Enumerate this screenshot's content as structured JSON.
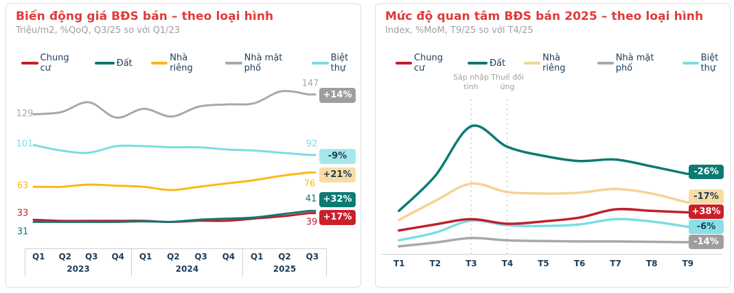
{
  "cards": [
    {
      "title": "Biến động giá BĐS bán – theo loại hình",
      "subtitle": "Triệu/m2, %QoQ, Q3/25 so với Q1/23",
      "legend": [
        {
          "label": "Chung cư",
          "color": "#c0202a"
        },
        {
          "label": "Đất",
          "color": "#0c7a72"
        },
        {
          "label": "Nhà riêng",
          "color": "#fcb813"
        },
        {
          "label": "Nhà mặt phố",
          "color": "#a8a8a8"
        },
        {
          "label": "Biệt thự",
          "color": "#7adde3"
        }
      ],
      "chart_data": {
        "type": "line",
        "x_labels": [
          "Q1",
          "Q2",
          "Q3",
          "Q4",
          "Q1",
          "Q2",
          "Q3",
          "Q4",
          "Q1",
          "Q2",
          "Q3"
        ],
        "year_groups": [
          {
            "label": "2023",
            "quarters": [
              "Q1",
              "Q2",
              "Q3",
              "Q4"
            ]
          },
          {
            "label": "2024",
            "quarters": [
              "Q1",
              "Q2",
              "Q3",
              "Q4"
            ]
          },
          {
            "label": "2025",
            "quarters": [
              "Q1",
              "Q2",
              "Q3"
            ]
          }
        ],
        "ylabel": "Triệu/m2",
        "series": [
          {
            "name": "Chung cư",
            "color": "#c0202a",
            "values": [
              33,
              32,
              32,
              32,
              32,
              31,
              32,
              32,
              34,
              36,
              39
            ],
            "start_label": "33",
            "end_label": "39",
            "change": "+17%",
            "badge": {
              "bg": "#c9202b",
              "fg": "#ffffff"
            }
          },
          {
            "name": "Đất",
            "color": "#0c7a72",
            "values": [
              31,
              31,
              31,
              31,
              31.5,
              31,
              33,
              34,
              35,
              38,
              41
            ],
            "start_label": "31",
            "end_label": "41",
            "change": "+32%",
            "badge": {
              "bg": "#0b7b72",
              "fg": "#ffffff"
            }
          },
          {
            "name": "Nhà riêng",
            "color": "#fcb813",
            "values": [
              63,
              63,
              65,
              64,
              63,
              60,
              63,
              66,
              69,
              73,
              76
            ],
            "start_label": "63",
            "end_label": "76",
            "change": "+21%",
            "badge": {
              "bg": "#f8dca4",
              "fg": "#1d3c5a"
            }
          },
          {
            "name": "Nhà mặt phố",
            "color": "#a8a8a8",
            "values": [
              129,
              131,
              140,
              126,
              134,
              127,
              136,
              138,
              139,
              150,
              147
            ],
            "start_label": "129",
            "end_label": "147",
            "change": "+14%",
            "badge": {
              "bg": "#9e9e9e",
              "fg": "#ffffff"
            }
          },
          {
            "name": "Biệt thự",
            "color": "#7adde3",
            "values": [
              101,
              96,
              94,
              100,
              100,
              99,
              99,
              97,
              96,
              94,
              92
            ],
            "start_label": "101",
            "end_label": "92",
            "change": "-9%",
            "badge": {
              "bg": "#a5e7ea",
              "fg": "#1d3c5a"
            }
          }
        ]
      }
    },
    {
      "title": "Mức độ quan tâm BĐS bán 2025 – theo loại hình",
      "subtitle": "Index, %MoM, T9/25 so với T4/25",
      "legend": [
        {
          "label": "Chung cư",
          "color": "#c0202a"
        },
        {
          "label": "Đất",
          "color": "#0c7a72"
        },
        {
          "label": "Nhà riêng",
          "color": "#f6d293"
        },
        {
          "label": "Nhà mặt phố",
          "color": "#a8a8a8"
        },
        {
          "label": "Biệt thự",
          "color": "#7adde3"
        }
      ],
      "annotations": [
        {
          "label": "Sáp nhập tỉnh",
          "x_label": "T3"
        },
        {
          "label": "Thuế đối ứng",
          "x_label": "T4"
        }
      ],
      "chart_data": {
        "type": "line",
        "x_labels": [
          "T1",
          "T2",
          "T3",
          "T4",
          "T5",
          "T6",
          "T7",
          "T8",
          "T9"
        ],
        "ylabel": "Index",
        "series": [
          {
            "name": "Chung cư",
            "color": "#c0202a",
            "values": [
              31,
              39,
              46,
              40,
              43,
              48,
              59,
              57,
              55
            ],
            "change": "+38%",
            "badge": {
              "bg": "#c9202b",
              "fg": "#ffffff"
            }
          },
          {
            "name": "Đất",
            "color": "#0c7a72",
            "values": [
              57,
              103,
              169,
              142,
              130,
              123,
              125,
              116,
              106
            ],
            "change": "-26%",
            "badge": {
              "bg": "#0b7b72",
              "fg": "#ffffff"
            }
          },
          {
            "name": "Nhà riêng",
            "color": "#f6d293",
            "values": [
              45,
              70,
              93,
              82,
              80,
              81,
              86,
              80,
              68
            ],
            "change": "-17%",
            "badge": {
              "bg": "#f8dca4",
              "fg": "#1d3c5a"
            }
          },
          {
            "name": "Nhà mặt phố",
            "color": "#a8a8a8",
            "values": [
              10,
              15,
              21,
              18,
              17,
              16.5,
              16.5,
              16,
              15.5
            ],
            "change": "-14%",
            "badge": {
              "bg": "#9e9e9e",
              "fg": "#ffffff"
            }
          },
          {
            "name": "Biệt thự",
            "color": "#7adde3",
            "values": [
              18,
              28,
              44,
              38,
              37,
              39,
              46,
              43,
              36
            ],
            "change": "-6%",
            "badge": {
              "bg": "#8be0e7",
              "fg": "#1d3c5a"
            }
          }
        ]
      }
    }
  ]
}
